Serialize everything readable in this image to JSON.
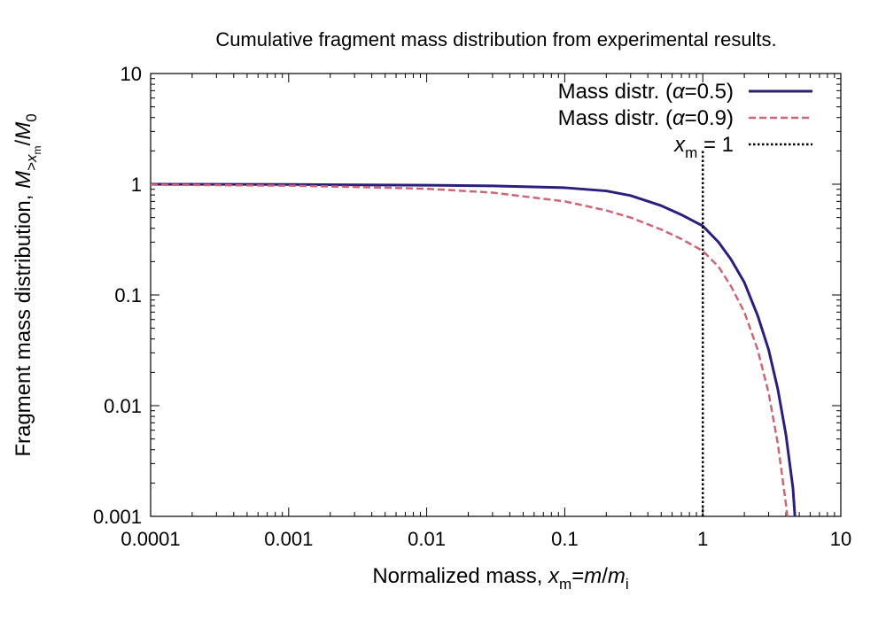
{
  "chart_data": {
    "type": "line",
    "title": "Cumulative fragment mass distribution from experimental results.",
    "xlabel": {
      "prefix": "Normalized mass, ",
      "sym": "x",
      "sub": "m",
      "eq": "=",
      "num": "m",
      "slash": "/",
      "den": "m",
      "den_sub": "i"
    },
    "ylabel": {
      "prefix": "Fragment mass distribution, ",
      "sym": "M",
      "sub_gt": ">",
      "sub_sym": "x",
      "sub_sub": "m",
      "slash": "/",
      "den": "M",
      "den_sub": "0"
    },
    "x_scale": "log",
    "y_scale": "log",
    "xlim": [
      0.0001,
      10
    ],
    "ylim": [
      0.001,
      10
    ],
    "x_ticks": [
      {
        "value": 0.0001,
        "label": "0.0001"
      },
      {
        "value": 0.001,
        "label": "0.001"
      },
      {
        "value": 0.01,
        "label": "0.01"
      },
      {
        "value": 0.1,
        "label": "0.1"
      },
      {
        "value": 1,
        "label": "1"
      },
      {
        "value": 10,
        "label": "10"
      }
    ],
    "y_ticks": [
      {
        "value": 0.001,
        "label": "0.001"
      },
      {
        "value": 0.01,
        "label": "0.01"
      },
      {
        "value": 0.1,
        "label": "0.1"
      },
      {
        "value": 1,
        "label": "1"
      },
      {
        "value": 10,
        "label": "10"
      }
    ],
    "grid": false,
    "legend_position": "top-right",
    "series": [
      {
        "legend": {
          "text": "Mass distr. (",
          "greek": "α",
          "rest": "=0.5)"
        },
        "color": "#2b1f7d",
        "dash": "solid",
        "x": [
          0.0001,
          0.001,
          0.01,
          0.03,
          0.1,
          0.2,
          0.3,
          0.5,
          0.7,
          1.0,
          1.3,
          1.6,
          2.0,
          2.5,
          3.0,
          3.5,
          4.0,
          4.5,
          4.65
        ],
        "y": [
          1.0,
          0.995,
          0.98,
          0.965,
          0.93,
          0.87,
          0.79,
          0.64,
          0.53,
          0.42,
          0.3,
          0.21,
          0.13,
          0.065,
          0.032,
          0.014,
          0.0055,
          0.0018,
          0.001
        ]
      },
      {
        "legend": {
          "text": "Mass distr. (",
          "greek": "α",
          "rest": "=0.9)"
        },
        "color": "#cc6677",
        "dash": "dashed",
        "x": [
          0.0001,
          0.001,
          0.003,
          0.01,
          0.03,
          0.1,
          0.2,
          0.3,
          0.5,
          0.7,
          1.0,
          1.3,
          1.6,
          2.0,
          2.5,
          3.0,
          3.5,
          4.0,
          4.1
        ],
        "y": [
          0.99,
          0.97,
          0.945,
          0.91,
          0.84,
          0.7,
          0.58,
          0.5,
          0.39,
          0.32,
          0.25,
          0.18,
          0.12,
          0.07,
          0.032,
          0.013,
          0.0045,
          0.0013,
          0.001
        ]
      },
      {
        "legend": {
          "sym": "x",
          "sub": "m",
          "rest": " = 1"
        },
        "color": "#000000",
        "dash": "dotted",
        "x": [
          1,
          1
        ],
        "y": [
          0.001,
          2.0
        ]
      }
    ]
  }
}
